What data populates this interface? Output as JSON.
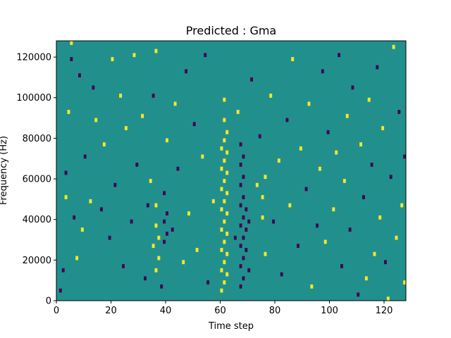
{
  "chart_data": {
    "type": "heatmap",
    "title": "Predicted : Gma",
    "xlabel": "Time step",
    "ylabel": "Frequency (Hz)",
    "xlim": [
      0,
      128
    ],
    "ylim": [
      0,
      128000
    ],
    "x_ticks": [
      0,
      20,
      40,
      60,
      80,
      100,
      120
    ],
    "y_ticks": [
      0,
      20000,
      40000,
      60000,
      80000,
      100000,
      120000
    ],
    "x_tick_labels": [
      "0",
      "20",
      "40",
      "60",
      "80",
      "100",
      "120"
    ],
    "y_tick_labels": [
      "0",
      "20000",
      "40000",
      "60000",
      "80000",
      "100000",
      "120000"
    ],
    "grid": false,
    "background_value": 0,
    "value_colors": {
      "-1": "#440154",
      "0": "#21908d",
      "1": "#fde725"
    },
    "cells": [
      {
        "x": 1,
        "y": 4000,
        "v": -1
      },
      {
        "x": 2,
        "y": 14000,
        "v": -1
      },
      {
        "x": 3,
        "y": 50000,
        "v": 1
      },
      {
        "x": 3,
        "y": 62000,
        "v": -1
      },
      {
        "x": 4,
        "y": 92000,
        "v": 1
      },
      {
        "x": 5,
        "y": 118000,
        "v": -1
      },
      {
        "x": 5,
        "y": 126000,
        "v": 1
      },
      {
        "x": 6,
        "y": 40000,
        "v": -1
      },
      {
        "x": 7,
        "y": 20000,
        "v": 1
      },
      {
        "x": 8,
        "y": 110000,
        "v": -1
      },
      {
        "x": 9,
        "y": 34000,
        "v": 1
      },
      {
        "x": 10,
        "y": 70000,
        "v": -1
      },
      {
        "x": 12,
        "y": 48000,
        "v": 1
      },
      {
        "x": 13,
        "y": 104000,
        "v": -1
      },
      {
        "x": 14,
        "y": 88000,
        "v": 1
      },
      {
        "x": 16,
        "y": 44000,
        "v": -1
      },
      {
        "x": 17,
        "y": 76000,
        "v": 1
      },
      {
        "x": 19,
        "y": 30000,
        "v": -1
      },
      {
        "x": 20,
        "y": 118000,
        "v": 1
      },
      {
        "x": 21,
        "y": 56000,
        "v": -1
      },
      {
        "x": 23,
        "y": 100000,
        "v": 1
      },
      {
        "x": 24,
        "y": 16000,
        "v": -1
      },
      {
        "x": 25,
        "y": 84000,
        "v": 1
      },
      {
        "x": 27,
        "y": 38000,
        "v": -1
      },
      {
        "x": 28,
        "y": 120000,
        "v": 1
      },
      {
        "x": 29,
        "y": 66000,
        "v": -1
      },
      {
        "x": 31,
        "y": 90000,
        "v": 1
      },
      {
        "x": 32,
        "y": 10000,
        "v": -1
      },
      {
        "x": 33,
        "y": 46000,
        "v": -1
      },
      {
        "x": 34,
        "y": 58000,
        "v": 1
      },
      {
        "x": 35,
        "y": 26000,
        "v": 1
      },
      {
        "x": 35,
        "y": 100000,
        "v": -1
      },
      {
        "x": 36,
        "y": 122000,
        "v": 1
      },
      {
        "x": 38,
        "y": 6000,
        "v": -1
      },
      {
        "x": 39,
        "y": 52000,
        "v": -1
      },
      {
        "x": 40,
        "y": 78000,
        "v": 1
      },
      {
        "x": 42,
        "y": 34000,
        "v": -1
      },
      {
        "x": 43,
        "y": 96000,
        "v": 1
      },
      {
        "x": 44,
        "y": 64000,
        "v": -1
      },
      {
        "x": 46,
        "y": 18000,
        "v": 1
      },
      {
        "x": 47,
        "y": 112000,
        "v": -1
      },
      {
        "x": 48,
        "y": 42000,
        "v": 1
      },
      {
        "x": 50,
        "y": 86000,
        "v": -1
      },
      {
        "x": 51,
        "y": 24000,
        "v": 1
      },
      {
        "x": 53,
        "y": 70000,
        "v": 1
      },
      {
        "x": 54,
        "y": 120000,
        "v": -1
      },
      {
        "x": 55,
        "y": 8000,
        "v": -1
      },
      {
        "x": 57,
        "y": 48000,
        "v": 1
      },
      {
        "x": 65,
        "y": 30000,
        "v": -1
      },
      {
        "x": 66,
        "y": 92000,
        "v": 1
      },
      {
        "x": 70,
        "y": 14000,
        "v": -1
      },
      {
        "x": 71,
        "y": 108000,
        "v": -1
      },
      {
        "x": 73,
        "y": 56000,
        "v": 1
      },
      {
        "x": 74,
        "y": 80000,
        "v": -1
      },
      {
        "x": 76,
        "y": 22000,
        "v": 1
      },
      {
        "x": 78,
        "y": 100000,
        "v": 1
      },
      {
        "x": 79,
        "y": 38000,
        "v": -1
      },
      {
        "x": 81,
        "y": 68000,
        "v": 1
      },
      {
        "x": 82,
        "y": 12000,
        "v": -1
      },
      {
        "x": 84,
        "y": 88000,
        "v": -1
      },
      {
        "x": 85,
        "y": 46000,
        "v": 1
      },
      {
        "x": 86,
        "y": 118000,
        "v": 1
      },
      {
        "x": 88,
        "y": 26000,
        "v": -1
      },
      {
        "x": 89,
        "y": 74000,
        "v": 1
      },
      {
        "x": 91,
        "y": 54000,
        "v": -1
      },
      {
        "x": 92,
        "y": 96000,
        "v": 1
      },
      {
        "x": 93,
        "y": 6000,
        "v": 1
      },
      {
        "x": 95,
        "y": 36000,
        "v": -1
      },
      {
        "x": 96,
        "y": 64000,
        "v": 1
      },
      {
        "x": 97,
        "y": 112000,
        "v": -1
      },
      {
        "x": 98,
        "y": 28000,
        "v": 1
      },
      {
        "x": 99,
        "y": 82000,
        "v": -1
      },
      {
        "x": 101,
        "y": 44000,
        "v": 1
      },
      {
        "x": 102,
        "y": 72000,
        "v": 1
      },
      {
        "x": 103,
        "y": 120000,
        "v": -1
      },
      {
        "x": 104,
        "y": 16000,
        "v": -1
      },
      {
        "x": 105,
        "y": 58000,
        "v": 1
      },
      {
        "x": 106,
        "y": 90000,
        "v": 1
      },
      {
        "x": 107,
        "y": 34000,
        "v": -1
      },
      {
        "x": 108,
        "y": 104000,
        "v": -1
      },
      {
        "x": 110,
        "y": 2000,
        "v": -1
      },
      {
        "x": 111,
        "y": 76000,
        "v": 1
      },
      {
        "x": 112,
        "y": 50000,
        "v": -1
      },
      {
        "x": 113,
        "y": 10000,
        "v": 1
      },
      {
        "x": 114,
        "y": 98000,
        "v": 1
      },
      {
        "x": 115,
        "y": 66000,
        "v": -1
      },
      {
        "x": 116,
        "y": 22000,
        "v": 1
      },
      {
        "x": 117,
        "y": 114000,
        "v": -1
      },
      {
        "x": 118,
        "y": 40000,
        "v": 1
      },
      {
        "x": 119,
        "y": 84000,
        "v": 1
      },
      {
        "x": 120,
        "y": 18000,
        "v": -1
      },
      {
        "x": 121,
        "y": 0,
        "v": 1
      },
      {
        "x": 122,
        "y": 60000,
        "v": -1
      },
      {
        "x": 123,
        "y": 124000,
        "v": 1
      },
      {
        "x": 124,
        "y": 30000,
        "v": 1
      },
      {
        "x": 125,
        "y": 92000,
        "v": -1
      },
      {
        "x": 126,
        "y": 46000,
        "v": 1
      },
      {
        "x": 127,
        "y": 8000,
        "v": 1
      },
      {
        "x": 127,
        "y": 70000,
        "v": -1
      },
      {
        "x": 60,
        "y": 4000,
        "v": 1
      },
      {
        "x": 60,
        "y": 14000,
        "v": 1
      },
      {
        "x": 60,
        "y": 24000,
        "v": 1
      },
      {
        "x": 60,
        "y": 34000,
        "v": 1
      },
      {
        "x": 60,
        "y": 44000,
        "v": 1
      },
      {
        "x": 60,
        "y": 54000,
        "v": 1
      },
      {
        "x": 60,
        "y": 64000,
        "v": 1
      },
      {
        "x": 60,
        "y": 74000,
        "v": 1
      },
      {
        "x": 61,
        "y": 8000,
        "v": 1
      },
      {
        "x": 61,
        "y": 18000,
        "v": 1
      },
      {
        "x": 61,
        "y": 28000,
        "v": 1
      },
      {
        "x": 61,
        "y": 38000,
        "v": 1
      },
      {
        "x": 61,
        "y": 48000,
        "v": 1
      },
      {
        "x": 61,
        "y": 58000,
        "v": 1
      },
      {
        "x": 61,
        "y": 68000,
        "v": 1
      },
      {
        "x": 61,
        "y": 78000,
        "v": 1
      },
      {
        "x": 61,
        "y": 88000,
        "v": 1
      },
      {
        "x": 61,
        "y": 98000,
        "v": 1
      },
      {
        "x": 62,
        "y": 12000,
        "v": 1
      },
      {
        "x": 62,
        "y": 22000,
        "v": 1
      },
      {
        "x": 62,
        "y": 32000,
        "v": 1
      },
      {
        "x": 62,
        "y": 42000,
        "v": 1
      },
      {
        "x": 62,
        "y": 52000,
        "v": 1
      },
      {
        "x": 62,
        "y": 62000,
        "v": 1
      },
      {
        "x": 62,
        "y": 72000,
        "v": 1
      },
      {
        "x": 62,
        "y": 82000,
        "v": 1
      },
      {
        "x": 67,
        "y": 6000,
        "v": -1
      },
      {
        "x": 67,
        "y": 16000,
        "v": -1
      },
      {
        "x": 67,
        "y": 26000,
        "v": -1
      },
      {
        "x": 67,
        "y": 36000,
        "v": -1
      },
      {
        "x": 67,
        "y": 46000,
        "v": -1
      },
      {
        "x": 67,
        "y": 56000,
        "v": -1
      },
      {
        "x": 67,
        "y": 66000,
        "v": -1
      },
      {
        "x": 67,
        "y": 76000,
        "v": -1
      },
      {
        "x": 68,
        "y": 10000,
        "v": -1
      },
      {
        "x": 68,
        "y": 20000,
        "v": -1
      },
      {
        "x": 68,
        "y": 30000,
        "v": -1
      },
      {
        "x": 68,
        "y": 40000,
        "v": -1
      },
      {
        "x": 68,
        "y": 50000,
        "v": -1
      },
      {
        "x": 68,
        "y": 60000,
        "v": -1
      },
      {
        "x": 68,
        "y": 70000,
        "v": -1
      },
      {
        "x": 69,
        "y": 24000,
        "v": -1
      },
      {
        "x": 69,
        "y": 34000,
        "v": -1
      },
      {
        "x": 69,
        "y": 44000,
        "v": -1
      },
      {
        "x": 70,
        "y": 38000,
        "v": -1
      },
      {
        "x": 39,
        "y": 28000,
        "v": -1
      },
      {
        "x": 39,
        "y": 38000,
        "v": -1
      },
      {
        "x": 40,
        "y": 32000,
        "v": -1
      },
      {
        "x": 40,
        "y": 42000,
        "v": -1
      },
      {
        "x": 36,
        "y": 14000,
        "v": 1
      },
      {
        "x": 36,
        "y": 36000,
        "v": 1
      },
      {
        "x": 36,
        "y": 46000,
        "v": 1
      },
      {
        "x": 37,
        "y": 20000,
        "v": 1
      },
      {
        "x": 37,
        "y": 30000,
        "v": 1
      },
      {
        "x": 75,
        "y": 40000,
        "v": 1
      },
      {
        "x": 75,
        "y": 50000,
        "v": 1
      },
      {
        "x": 76,
        "y": 60000,
        "v": 1
      }
    ]
  }
}
